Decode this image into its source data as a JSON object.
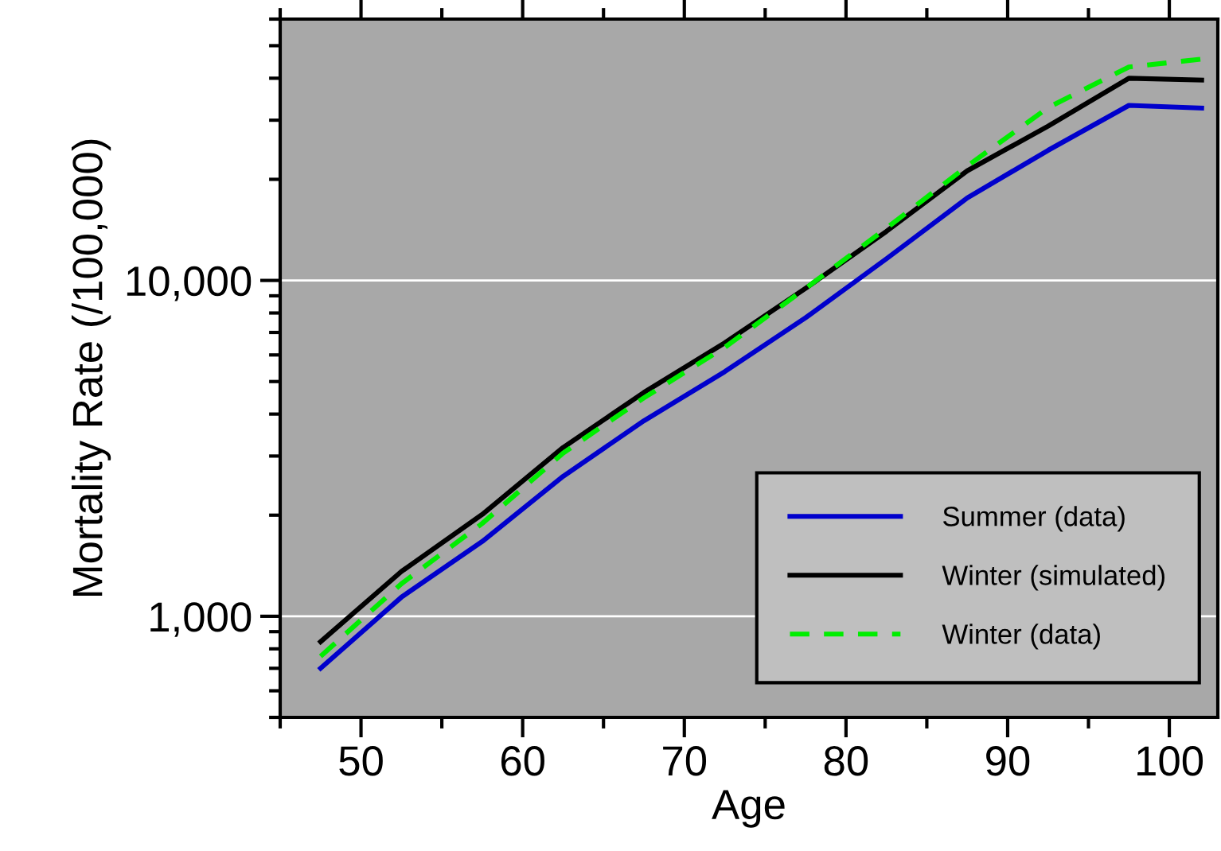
{
  "chart_data": {
    "type": "line",
    "xlabel": "Age",
    "ylabel": "Mortality Rate (/100,000)",
    "x": [
      47.5,
      52.5,
      57.5,
      62.5,
      67.5,
      72.5,
      77.5,
      82.5,
      87.5,
      92.5,
      97.5,
      102
    ],
    "series": [
      {
        "name": "Summer (data)",
        "color": "#0000cc",
        "line_style": "solid",
        "values": [
          700,
          1140,
          1670,
          2610,
          3820,
          5350,
          7740,
          11600,
          17600,
          24400,
          33200,
          32600
        ]
      },
      {
        "name": "Winter (simulated)",
        "color": "#000000",
        "line_style": "solid",
        "values": [
          840,
          1360,
          2010,
          3180,
          4640,
          6520,
          9470,
          14000,
          21200,
          28800,
          40000,
          39500
        ]
      },
      {
        "name": "Winter (data)",
        "color": "#00ee00",
        "line_style": "dashed",
        "values": [
          760,
          1250,
          1890,
          3060,
          4470,
          6320,
          9470,
          14300,
          21900,
          32700,
          43200,
          45600
        ]
      }
    ],
    "log": "y",
    "xlim": [
      45,
      103
    ],
    "ylim": [
      500,
      60000
    ],
    "xticks": [
      50,
      60,
      70,
      80,
      90,
      100
    ],
    "yticks": [
      {
        "value": 1000,
        "label": "1,000"
      },
      {
        "value": 10000,
        "label": "10,000"
      }
    ],
    "grid": "y",
    "legend": "lower right",
    "marker": "none"
  }
}
